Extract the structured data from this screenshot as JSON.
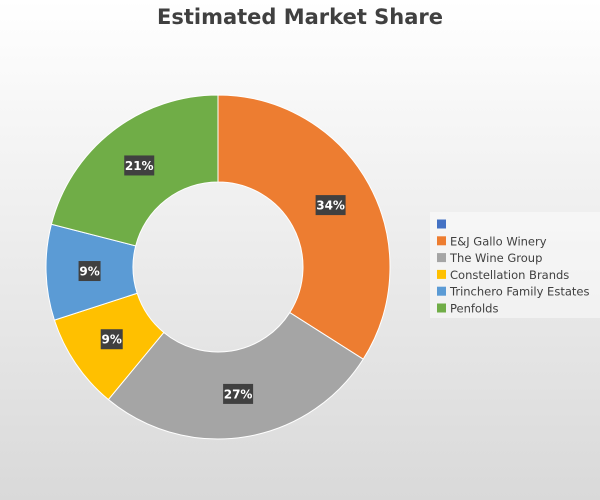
{
  "chart_data": {
    "type": "donut",
    "title": "Estimated Market Share",
    "categories": [
      null,
      "E&J Gallo Winery",
      "The Wine Group",
      "Constellation Brands",
      "Trinchero Family Estates",
      "Penfolds"
    ],
    "values": [
      0,
      34,
      27,
      9,
      9,
      21
    ],
    "value_labels": [
      null,
      "34%",
      "27%",
      "9%",
      "9%",
      "21%"
    ],
    "colors": [
      "#4472c4",
      "#ed7d31",
      "#a5a5a5",
      "#ffc000",
      "#5b9bd5",
      "#70ad47"
    ],
    "legend": "right"
  }
}
